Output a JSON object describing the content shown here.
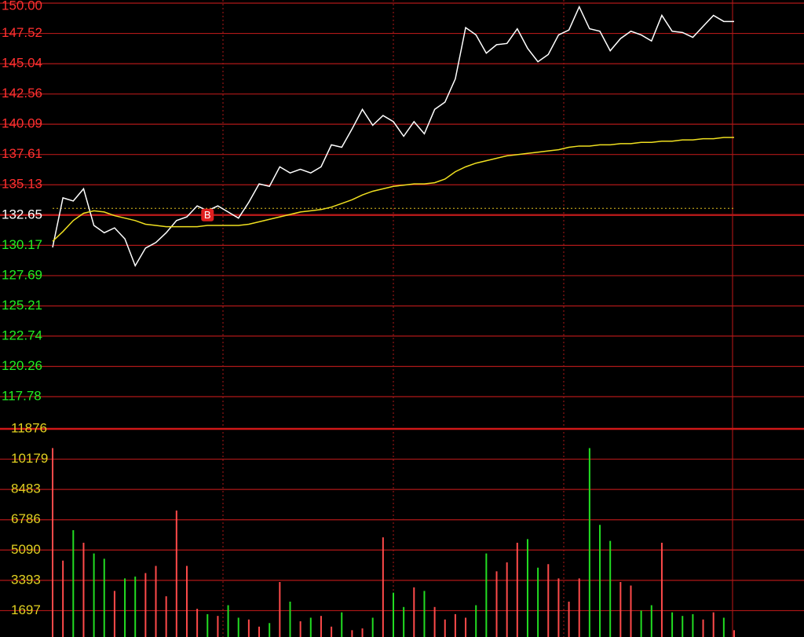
{
  "chart_data": [
    {
      "type": "line",
      "ylim": [
        115.21,
        150.0
      ],
      "yticks": [
        {
          "value": 150.0,
          "label": "150.00"
        },
        147.52,
        145.04,
        142.56,
        140.09,
        137.61,
        135.13,
        132.65,
        130.17,
        127.69,
        125.21,
        122.74,
        120.26,
        117.78
      ],
      "prev_close": 132.65,
      "marker_level": 133.2,
      "buy_marker": {
        "label": "B",
        "index": 15,
        "value": 132.65
      },
      "series": [
        {
          "color": "#ffffff",
          "values": [
            130.0,
            134.06,
            133.8,
            134.8,
            131.8,
            131.2,
            131.6,
            130.7,
            128.5,
            129.95,
            130.4,
            131.2,
            132.2,
            132.5,
            133.4,
            133.0,
            133.4,
            132.9,
            132.4,
            133.7,
            135.2,
            135.0,
            136.6,
            136.1,
            136.4,
            136.1,
            136.6,
            138.4,
            138.2,
            139.7,
            141.3,
            140.0,
            140.8,
            140.3,
            139.1,
            140.3,
            139.3,
            141.3,
            141.9,
            143.8,
            148.0,
            147.4,
            145.9,
            146.6,
            146.7,
            147.9,
            146.3,
            145.2,
            145.8,
            147.4,
            147.8,
            149.7,
            147.9,
            147.7,
            146.1,
            147.1,
            147.7,
            147.4,
            146.9,
            149.0,
            147.7,
            147.6,
            147.2,
            148.1,
            149.0,
            148.5,
            148.5
          ]
        },
        {
          "color": "#f0e020",
          "values": [
            130.5,
            131.3,
            132.2,
            132.8,
            133.0,
            132.9,
            132.6,
            132.4,
            132.2,
            131.9,
            131.8,
            131.7,
            131.7,
            131.7,
            131.7,
            131.8,
            131.8,
            131.8,
            131.8,
            131.9,
            132.1,
            132.3,
            132.5,
            132.7,
            132.9,
            133.0,
            133.1,
            133.3,
            133.6,
            133.9,
            134.3,
            134.6,
            134.8,
            135.0,
            135.1,
            135.2,
            135.2,
            135.3,
            135.6,
            136.2,
            136.6,
            136.9,
            137.1,
            137.3,
            137.5,
            137.6,
            137.7,
            137.8,
            137.9,
            138.0,
            138.2,
            138.3,
            138.3,
            138.4,
            138.4,
            138.5,
            138.5,
            138.6,
            138.6,
            138.7,
            138.7,
            138.8,
            138.8,
            138.9,
            138.9,
            139.0,
            139.0
          ]
        }
      ]
    },
    {
      "type": "bar",
      "ylim": [
        0,
        11876
      ],
      "yticks": [
        11876,
        10179,
        8483,
        6786,
        5090,
        3393,
        1697
      ],
      "up_color": "#ff4a4a",
      "down_color": "#22dd22",
      "values": [
        10800,
        4500,
        6200,
        5500,
        4900,
        4600,
        2800,
        3500,
        3600,
        3800,
        4200,
        2500,
        7300,
        4200,
        1800,
        1500,
        1400,
        2000,
        1300,
        1200,
        800,
        1000,
        3300,
        2200,
        1100,
        1300,
        1400,
        800,
        1600,
        600,
        700,
        1300,
        5800,
        2700,
        1900,
        3000,
        2800,
        1900,
        1200,
        1500,
        1300,
        2000,
        4900,
        3900,
        4400,
        5500,
        5700,
        4100,
        4300,
        3500,
        2200,
        3500,
        10800,
        6500,
        5600,
        3300,
        3100,
        1700,
        2000,
        5500,
        1600,
        1400,
        1500,
        1200,
        1600,
        1300,
        600
      ]
    }
  ]
}
